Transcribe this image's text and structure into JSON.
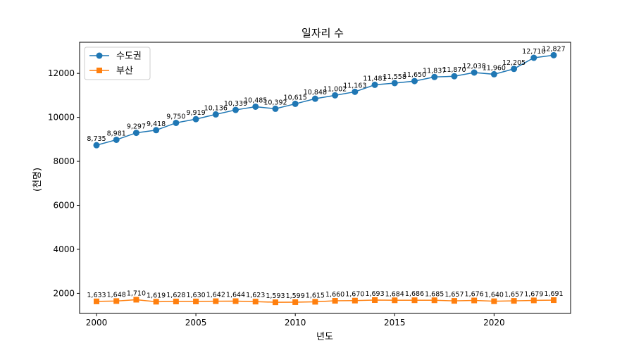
{
  "chart_data": {
    "type": "line",
    "title": "일자리 수",
    "xlabel": "년도",
    "ylabel": "(천명)",
    "xlim": [
      1999.15,
      2023.85
    ],
    "ylim": [
      1085,
      13415
    ],
    "xticks": [
      2000,
      2005,
      2010,
      2015,
      2020
    ],
    "yticks": [
      2000,
      4000,
      6000,
      8000,
      10000,
      12000
    ],
    "grid": false,
    "legend_position": "top-left",
    "x": [
      2000,
      2001,
      2002,
      2003,
      2004,
      2005,
      2006,
      2007,
      2008,
      2009,
      2010,
      2011,
      2012,
      2013,
      2014,
      2015,
      2016,
      2017,
      2018,
      2019,
      2020,
      2021,
      2022,
      2023
    ],
    "series": [
      {
        "name": "수도권",
        "color": "#1f77b4",
        "marker": "circle",
        "values": [
          8735,
          8981,
          9297,
          9418,
          9750,
          9919,
          10136,
          10339,
          10485,
          10392,
          10615,
          10848,
          11002,
          11163,
          11481,
          11558,
          11650,
          11837,
          11870,
          12038,
          11960,
          12205,
          12710,
          12827
        ],
        "labels": [
          "8,735",
          "8,981",
          "9,297",
          "9,418",
          "9,750",
          "9,919",
          "10,136",
          "10,339",
          "10,485",
          "10,392",
          "10,615",
          "10,848",
          "11,002",
          "11,163",
          "11,481",
          "11,558",
          "11,650",
          "11,837",
          "11,870",
          "12,038",
          "11,960",
          "12,205",
          "12,710",
          "12,827"
        ]
      },
      {
        "name": "부산",
        "color": "#ff7f0e",
        "marker": "square",
        "values": [
          1633,
          1648,
          1710,
          1619,
          1628,
          1630,
          1642,
          1644,
          1623,
          1593,
          1599,
          1615,
          1660,
          1670,
          1693,
          1684,
          1686,
          1685,
          1657,
          1676,
          1640,
          1657,
          1679,
          1691
        ],
        "labels": [
          "1,633",
          "1,648",
          "1,710",
          "1,619",
          "1,628",
          "1,630",
          "1,642",
          "1,644",
          "1,623",
          "1,593",
          "1,599",
          "1,615",
          "1,660",
          "1,670",
          "1,693",
          "1,684",
          "1,686",
          "1,685",
          "1,657",
          "1,676",
          "1,640",
          "1,657",
          "1,679",
          "1,691"
        ]
      }
    ]
  }
}
